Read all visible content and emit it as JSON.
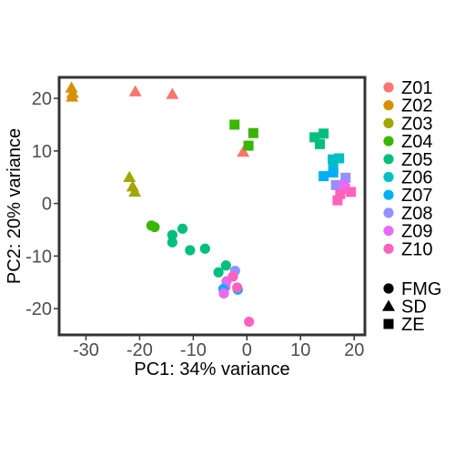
{
  "chart_data": {
    "type": "scatter",
    "title": "",
    "xlabel": "PC1: 34% variance",
    "ylabel": "PC2: 20% variance",
    "xlim": [
      -35,
      22
    ],
    "ylim": [
      -25,
      24
    ],
    "xticks": [
      -30,
      -20,
      -10,
      0,
      10,
      20
    ],
    "yticks": [
      -20,
      -10,
      0,
      10,
      20
    ],
    "grid": false,
    "legend_placement": "right",
    "color_legend": [
      {
        "name": "Z01",
        "color": "#F8766D"
      },
      {
        "name": "Z02",
        "color": "#D89000"
      },
      {
        "name": "Z03",
        "color": "#A3A500"
      },
      {
        "name": "Z04",
        "color": "#39B600"
      },
      {
        "name": "Z05",
        "color": "#00BF7D"
      },
      {
        "name": "Z06",
        "color": "#00BFC4"
      },
      {
        "name": "Z07",
        "color": "#00B0F6"
      },
      {
        "name": "Z08",
        "color": "#9590FF"
      },
      {
        "name": "Z09",
        "color": "#E76BF3"
      },
      {
        "name": "Z10",
        "color": "#FF62BC"
      }
    ],
    "shape_legend": [
      {
        "name": "FMG",
        "shape": "circle"
      },
      {
        "name": "SD",
        "shape": "triangle"
      },
      {
        "name": "ZE",
        "shape": "square"
      }
    ],
    "points": [
      {
        "x": -32.7,
        "y": 22.0,
        "group": "Z02",
        "shape": "triangle"
      },
      {
        "x": -32.5,
        "y": 21.0,
        "group": "Z02",
        "shape": "triangle"
      },
      {
        "x": -32.6,
        "y": 20.3,
        "group": "Z02",
        "shape": "triangle"
      },
      {
        "x": -20.8,
        "y": 21.3,
        "group": "Z01",
        "shape": "triangle"
      },
      {
        "x": -13.9,
        "y": 20.8,
        "group": "Z01",
        "shape": "triangle"
      },
      {
        "x": -0.7,
        "y": 9.8,
        "group": "Z01",
        "shape": "triangle"
      },
      {
        "x": -21.9,
        "y": 5.0,
        "group": "Z03",
        "shape": "triangle"
      },
      {
        "x": -21.3,
        "y": 3.2,
        "group": "Z03",
        "shape": "triangle"
      },
      {
        "x": -20.9,
        "y": 2.2,
        "group": "Z03",
        "shape": "triangle"
      },
      {
        "x": -2.3,
        "y": 15.0,
        "group": "Z04",
        "shape": "square"
      },
      {
        "x": 1.2,
        "y": 13.4,
        "group": "Z04",
        "shape": "square"
      },
      {
        "x": 0.3,
        "y": 11.0,
        "group": "Z04",
        "shape": "square"
      },
      {
        "x": 12.6,
        "y": 12.6,
        "group": "Z05",
        "shape": "square"
      },
      {
        "x": 14.3,
        "y": 13.3,
        "group": "Z05",
        "shape": "square"
      },
      {
        "x": 13.6,
        "y": 11.3,
        "group": "Z05",
        "shape": "square"
      },
      {
        "x": 16.0,
        "y": 8.4,
        "group": "Z06",
        "shape": "square"
      },
      {
        "x": 17.2,
        "y": 8.6,
        "group": "Z06",
        "shape": "square"
      },
      {
        "x": 16.1,
        "y": 6.8,
        "group": "Z06",
        "shape": "square"
      },
      {
        "x": 14.3,
        "y": 5.2,
        "group": "Z07",
        "shape": "square"
      },
      {
        "x": 16.1,
        "y": 5.9,
        "group": "Z07",
        "shape": "square"
      },
      {
        "x": 18.4,
        "y": 4.9,
        "group": "Z08",
        "shape": "square"
      },
      {
        "x": 16.6,
        "y": 3.5,
        "group": "Z08",
        "shape": "square"
      },
      {
        "x": 18.1,
        "y": 3.4,
        "group": "Z09",
        "shape": "square"
      },
      {
        "x": 18.3,
        "y": 2.8,
        "group": "Z09",
        "shape": "square"
      },
      {
        "x": 19.4,
        "y": 2.2,
        "group": "Z10",
        "shape": "square"
      },
      {
        "x": 17.4,
        "y": 1.8,
        "group": "Z10",
        "shape": "square"
      },
      {
        "x": 16.9,
        "y": 0.6,
        "group": "Z10",
        "shape": "square"
      },
      {
        "x": -17.8,
        "y": -4.2,
        "group": "Z04",
        "shape": "circle"
      },
      {
        "x": -17.2,
        "y": -4.5,
        "group": "Z04",
        "shape": "circle"
      },
      {
        "x": -12.0,
        "y": -4.8,
        "group": "Z05",
        "shape": "circle"
      },
      {
        "x": -13.9,
        "y": -6.0,
        "group": "Z05",
        "shape": "circle"
      },
      {
        "x": -13.9,
        "y": -7.4,
        "group": "Z05",
        "shape": "circle"
      },
      {
        "x": -10.6,
        "y": -8.9,
        "group": "Z05",
        "shape": "circle"
      },
      {
        "x": -7.8,
        "y": -8.6,
        "group": "Z05",
        "shape": "circle"
      },
      {
        "x": -5.3,
        "y": -13.1,
        "group": "Z05",
        "shape": "circle"
      },
      {
        "x": -3.9,
        "y": -11.8,
        "group": "Z05",
        "shape": "circle"
      },
      {
        "x": -2.2,
        "y": -12.8,
        "group": "Z08",
        "shape": "circle"
      },
      {
        "x": -3.8,
        "y": -14.8,
        "group": "Z09",
        "shape": "circle"
      },
      {
        "x": -2.6,
        "y": -13.9,
        "group": "Z10",
        "shape": "circle"
      },
      {
        "x": -4.0,
        "y": -15.9,
        "group": "Z09",
        "shape": "circle"
      },
      {
        "x": -4.4,
        "y": -16.3,
        "group": "Z07",
        "shape": "circle"
      },
      {
        "x": -1.7,
        "y": -16.4,
        "group": "Z07",
        "shape": "circle"
      },
      {
        "x": -1.8,
        "y": -16.0,
        "group": "Z10",
        "shape": "circle"
      },
      {
        "x": -4.3,
        "y": -17.1,
        "group": "Z09",
        "shape": "circle"
      },
      {
        "x": 0.4,
        "y": -22.5,
        "group": "Z10",
        "shape": "circle"
      }
    ]
  }
}
